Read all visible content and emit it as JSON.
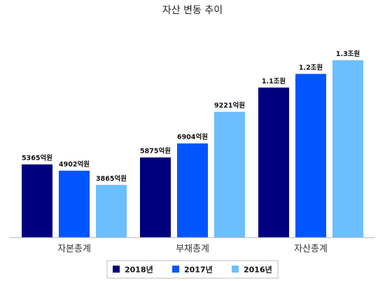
{
  "chart_data": {
    "type": "bar",
    "title": "자산 변동 추이",
    "categories": [
      "자본총계",
      "부채총계",
      "자산총계"
    ],
    "unit": "억원",
    "series": [
      {
        "name": "2018년",
        "color": "#00007f",
        "values": [
          5365,
          5875,
          11000
        ],
        "labels": [
          "5365억원",
          "5875억원",
          "1.1조원"
        ]
      },
      {
        "name": "2017년",
        "color": "#0055ff",
        "values": [
          4902,
          6904,
          12000
        ],
        "labels": [
          "4902억원",
          "6904억원",
          "1.2조원"
        ]
      },
      {
        "name": "2016년",
        "color": "#6bbfff",
        "values": [
          3865,
          9221,
          13000
        ],
        "labels": [
          "3865억원",
          "9221억원",
          "1.3조원"
        ]
      }
    ],
    "ylim": [
      0,
      13000
    ],
    "grid": false,
    "legend_position": "bottom"
  }
}
